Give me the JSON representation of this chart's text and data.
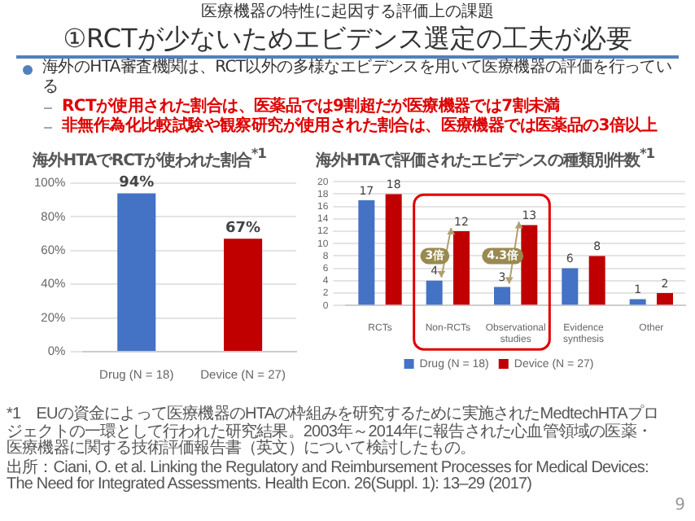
{
  "chart_data": [
    {
      "type": "other",
      "subtitle": "医療機器の特性に起因する評価上の課題",
      "title": "①RCTが少ないためエビデンス選定の工夫が必要",
      "annotations": [
        "海外のHTA審査機関は、RCT以外の多様なエビデンスを用いて医療機器の評価を行っている",
        "RCTが使用された割合は、医薬品では9割超だが医療機器では7割未満",
        "非無作為化比較試験や観察研究が使用された割合は、医療機器では医薬品の3倍以上"
      ]
    },
    {
      "type": "bar",
      "title": "海外HTAでRCTが使われた割合$^{*1}$",
      "categories": [
        "Drug (N = 18)",
        "Device (N = 27)"
      ],
      "values": [
        94,
        67
      ],
      "colors": [
        "#4472c4",
        "#c00000"
      ],
      "value_labels": [
        "94%",
        "67%"
      ],
      "ylim": [
        0,
        100
      ],
      "yticks": [
        {
          "value": 0,
          "label": "0%"
        },
        {
          "value": 20,
          "label": "20%"
        },
        {
          "value": 40,
          "label": "40%"
        },
        {
          "value": 60,
          "label": "60%"
        },
        {
          "value": 80,
          "label": "80%"
        },
        {
          "value": 100,
          "label": "100%"
        }
      ],
      "grid": "y"
    },
    {
      "type": "bar",
      "title": "海外HTAで評価されたエビデンスの種類別件数$^{*1}$",
      "categories": [
        "RCTs",
        "Non-RCTs",
        "Observational studies",
        "Evidence synthesis",
        "Other"
      ],
      "series": [
        {
          "name": "Drug (N = 18)",
          "color": "#4472c4",
          "values": [
            17,
            4,
            3,
            6,
            1
          ]
        },
        {
          "name": "Device (N = 27)",
          "color": "#c00000",
          "values": [
            18,
            12,
            13,
            8,
            2
          ]
        }
      ],
      "data_labels": true,
      "ylim": [
        0,
        20
      ],
      "yticks": [
        0,
        2,
        4,
        6,
        8,
        10,
        12,
        14,
        16,
        18,
        20
      ],
      "grid": "y",
      "legend": "bottom",
      "annotations": [
        {
          "text": "3倍",
          "x": "Non-RCTs",
          "y": 8
        },
        {
          "text": "4.3倍",
          "x": "Observational studies",
          "y": 8
        }
      ]
    },
    {
      "type": "other",
      "annotations": [
        "*1　EUの資金によって医療機器のHTAの枠組みを研究するために実施されたMedtechHTAプロジェクトの一環として行われた研究結果。2003年～2014年に報告された心血管領域の医薬・医療機器に関する技術評価報告書（英文）について検討したもの。",
        "出所：Ciani, O. et al. Linking the Regulatory and Reimbursement Processes for Medical Devices: The Need for Integrated Assessments. Health Econ. 26(Suppl. 1): 13–29 (2017)",
        "9"
      ]
    }
  ]
}
